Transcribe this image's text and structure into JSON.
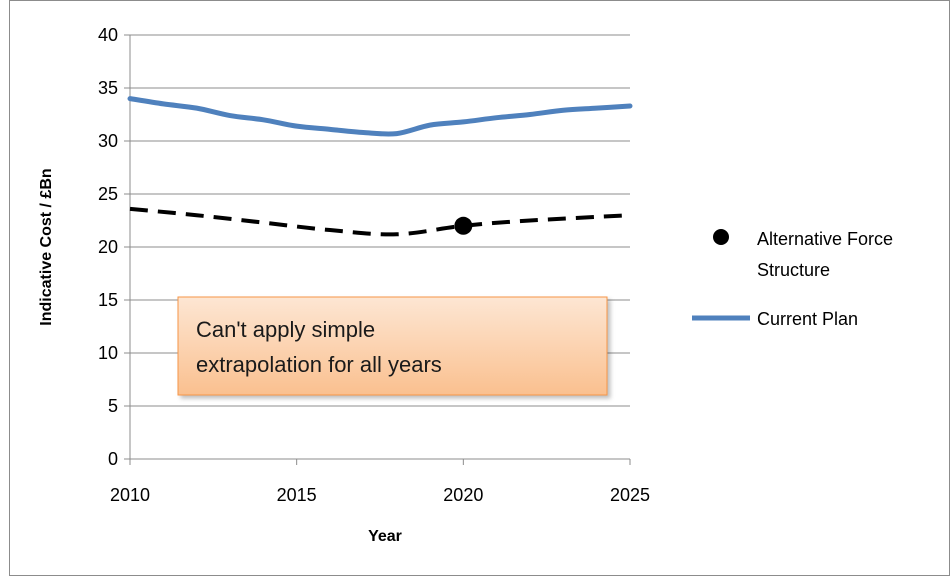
{
  "chart_data": {
    "type": "line",
    "title": "",
    "xlabel": "Year",
    "ylabel": "Indicative Cost / £Bn",
    "xlim": [
      2010,
      2025
    ],
    "ylim": [
      0,
      40
    ],
    "x_ticks": [
      "2010",
      "2015",
      "2020",
      "2025"
    ],
    "y_ticks": [
      "0",
      "5",
      "10",
      "15",
      "20",
      "25",
      "30",
      "35",
      "40"
    ],
    "grid": "horizontal",
    "legend_position": "right",
    "series": [
      {
        "name": "Current Plan",
        "style": "solid",
        "color": "#4f81bd",
        "x": [
          2010,
          2011,
          2012,
          2013,
          2014,
          2015,
          2016,
          2017,
          2018,
          2019,
          2020,
          2021,
          2022,
          2023,
          2024,
          2025
        ],
        "y": [
          34.0,
          33.5,
          33.1,
          32.4,
          32.0,
          31.4,
          31.1,
          30.8,
          30.7,
          31.5,
          31.8,
          32.2,
          32.5,
          32.9,
          33.1,
          33.3
        ]
      },
      {
        "name": "",
        "style": "dashed",
        "color": "#000000",
        "x": [
          2010,
          2012,
          2014,
          2016,
          2018,
          2020,
          2022,
          2025
        ],
        "y": [
          23.6,
          23.0,
          22.3,
          21.6,
          21.2,
          22.0,
          22.5,
          23.0
        ]
      },
      {
        "name": "Alternative Force Structure",
        "style": "marker",
        "color": "#000000",
        "x": [
          2020
        ],
        "y": [
          22.0
        ]
      }
    ],
    "annotations": [
      {
        "text_lines": [
          "Can't apply simple",
          "extrapolation for all years"
        ]
      }
    ],
    "legend": [
      {
        "label_lines": [
          "Alternative Force",
          "Structure"
        ],
        "kind": "marker",
        "color": "#000000"
      },
      {
        "label_lines": [
          "Current Plan"
        ],
        "kind": "line",
        "color": "#4f81bd"
      }
    ]
  }
}
